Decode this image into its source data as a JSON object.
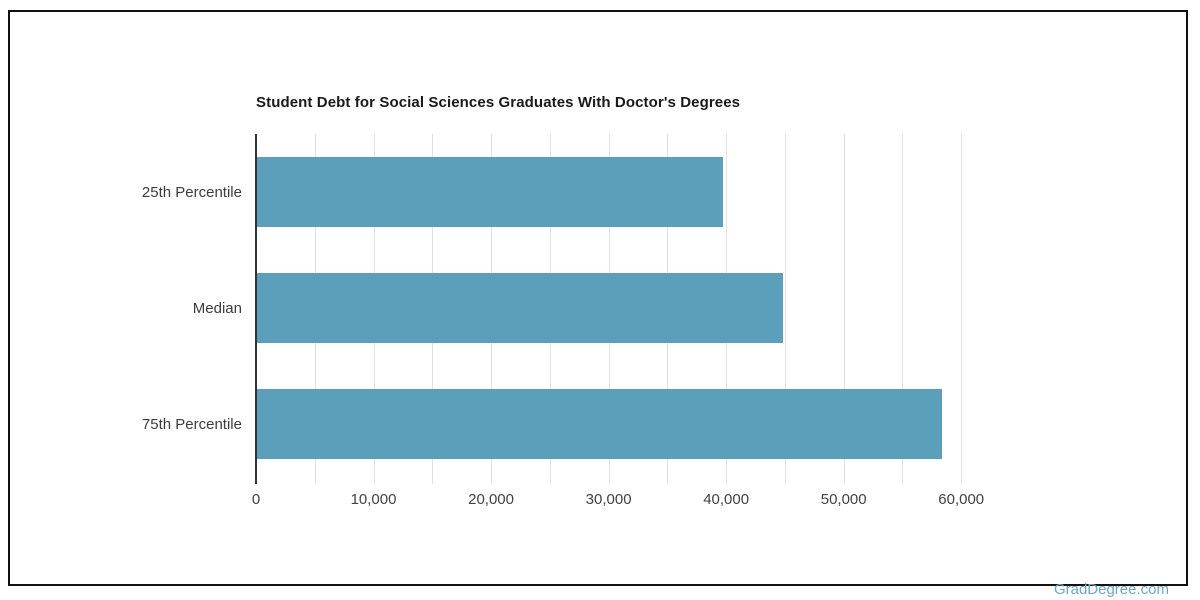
{
  "chart_data": {
    "type": "bar",
    "orientation": "horizontal",
    "title": "Student Debt for Social Sciences Graduates With Doctor's Degrees",
    "categories": [
      "25th Percentile",
      "Median",
      "75th Percentile"
    ],
    "values": [
      39700,
      44850,
      58400
    ],
    "xlabel": "",
    "ylabel": "",
    "xlim": [
      0,
      65000
    ],
    "xtick_values": [
      0,
      10000,
      20000,
      30000,
      40000,
      50000,
      60000
    ],
    "xtick_labels": [
      "0",
      "10,000",
      "20,000",
      "30,000",
      "40,000",
      "50,000",
      "60,000"
    ],
    "gridline_interval": 5000,
    "gridline_max": 60000,
    "grid": true,
    "legend": false,
    "bar_color": "#5B9FBA",
    "axis_color": "#333333",
    "gridline_color": "#e0e0e0",
    "title_color": "#1a1a1a",
    "tick_label_color": "#424242"
  },
  "watermark": {
    "label": "GradDegree.com",
    "color": "#72A5BE"
  }
}
